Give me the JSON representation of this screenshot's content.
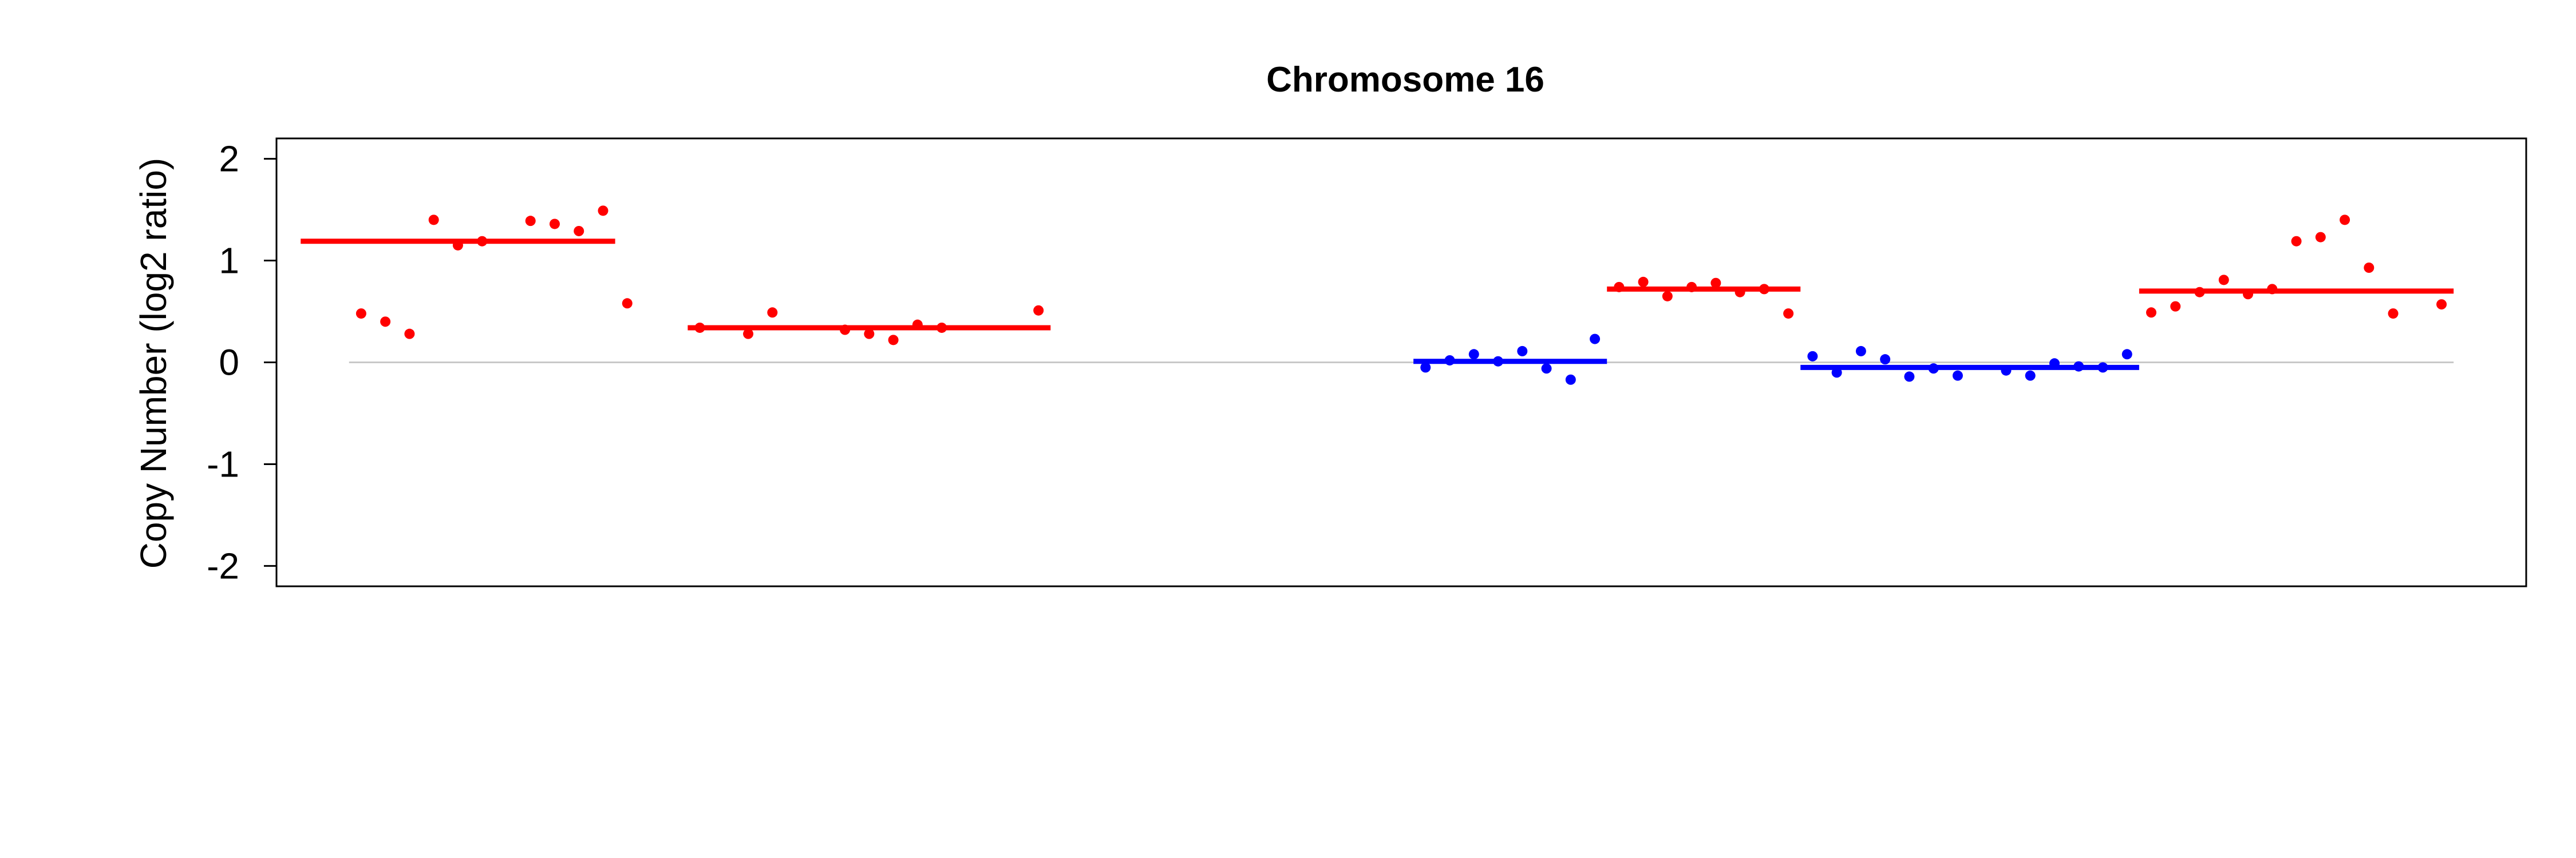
{
  "chart_data": {
    "type": "scatter",
    "title": "Chromosome 16",
    "xlabel": "",
    "ylabel": "Copy Number (log2 ratio)",
    "ylim": [
      -2.2,
      2.2
    ],
    "yticks": [
      2,
      1,
      0,
      -1,
      -2
    ],
    "xlim": [
      0,
      93
    ],
    "grid": false,
    "reference_line": 0,
    "colors": {
      "gain": "#ff0000",
      "loss": "#0000ff",
      "reference": "#c8c8c8",
      "axis": "#000000"
    },
    "segments": [
      {
        "x_start": 1,
        "x_end": 14,
        "value": 1.19,
        "color": "#ff0000"
      },
      {
        "x_start": 17,
        "x_end": 32,
        "value": 0.34,
        "color": "#ff0000"
      },
      {
        "x_start": 47,
        "x_end": 55,
        "value": 0.01,
        "color": "#0000ff"
      },
      {
        "x_start": 55,
        "x_end": 63,
        "value": 0.72,
        "color": "#ff0000"
      },
      {
        "x_start": 63,
        "x_end": 77,
        "value": -0.05,
        "color": "#0000ff"
      },
      {
        "x_start": 77,
        "x_end": 90,
        "value": 0.7,
        "color": "#ff0000"
      }
    ],
    "points": [
      {
        "x": 3.5,
        "y": 0.48,
        "color": "#ff0000"
      },
      {
        "x": 4.5,
        "y": 0.4,
        "color": "#ff0000"
      },
      {
        "x": 5.5,
        "y": 0.28,
        "color": "#ff0000"
      },
      {
        "x": 6.5,
        "y": 1.4,
        "color": "#ff0000"
      },
      {
        "x": 7.5,
        "y": 1.15,
        "color": "#ff0000"
      },
      {
        "x": 8.5,
        "y": 1.19,
        "color": "#ff0000"
      },
      {
        "x": 10.5,
        "y": 1.39,
        "color": "#ff0000"
      },
      {
        "x": 11.5,
        "y": 1.36,
        "color": "#ff0000"
      },
      {
        "x": 12.5,
        "y": 1.29,
        "color": "#ff0000"
      },
      {
        "x": 13.5,
        "y": 1.49,
        "color": "#ff0000"
      },
      {
        "x": 14.5,
        "y": 0.58,
        "color": "#ff0000"
      },
      {
        "x": 17.5,
        "y": 0.34,
        "color": "#ff0000"
      },
      {
        "x": 19.5,
        "y": 0.28,
        "color": "#ff0000"
      },
      {
        "x": 20.5,
        "y": 0.49,
        "color": "#ff0000"
      },
      {
        "x": 23.5,
        "y": 0.32,
        "color": "#ff0000"
      },
      {
        "x": 24.5,
        "y": 0.28,
        "color": "#ff0000"
      },
      {
        "x": 25.5,
        "y": 0.22,
        "color": "#ff0000"
      },
      {
        "x": 26.5,
        "y": 0.37,
        "color": "#ff0000"
      },
      {
        "x": 27.5,
        "y": 0.34,
        "color": "#ff0000"
      },
      {
        "x": 31.5,
        "y": 0.51,
        "color": "#ff0000"
      },
      {
        "x": 47.5,
        "y": -0.05,
        "color": "#0000ff"
      },
      {
        "x": 48.5,
        "y": 0.02,
        "color": "#0000ff"
      },
      {
        "x": 49.5,
        "y": 0.08,
        "color": "#0000ff"
      },
      {
        "x": 50.5,
        "y": 0.01,
        "color": "#0000ff"
      },
      {
        "x": 51.5,
        "y": 0.11,
        "color": "#0000ff"
      },
      {
        "x": 52.5,
        "y": -0.06,
        "color": "#0000ff"
      },
      {
        "x": 53.5,
        "y": -0.17,
        "color": "#0000ff"
      },
      {
        "x": 54.5,
        "y": 0.23,
        "color": "#0000ff"
      },
      {
        "x": 55.5,
        "y": 0.74,
        "color": "#ff0000"
      },
      {
        "x": 56.5,
        "y": 0.79,
        "color": "#ff0000"
      },
      {
        "x": 57.5,
        "y": 0.65,
        "color": "#ff0000"
      },
      {
        "x": 58.5,
        "y": 0.74,
        "color": "#ff0000"
      },
      {
        "x": 59.5,
        "y": 0.78,
        "color": "#ff0000"
      },
      {
        "x": 60.5,
        "y": 0.69,
        "color": "#ff0000"
      },
      {
        "x": 61.5,
        "y": 0.72,
        "color": "#ff0000"
      },
      {
        "x": 62.5,
        "y": 0.48,
        "color": "#ff0000"
      },
      {
        "x": 63.5,
        "y": 0.06,
        "color": "#0000ff"
      },
      {
        "x": 64.5,
        "y": -0.1,
        "color": "#0000ff"
      },
      {
        "x": 65.5,
        "y": 0.11,
        "color": "#0000ff"
      },
      {
        "x": 66.5,
        "y": 0.03,
        "color": "#0000ff"
      },
      {
        "x": 67.5,
        "y": -0.14,
        "color": "#0000ff"
      },
      {
        "x": 68.5,
        "y": -0.06,
        "color": "#0000ff"
      },
      {
        "x": 69.5,
        "y": -0.13,
        "color": "#0000ff"
      },
      {
        "x": 71.5,
        "y": -0.08,
        "color": "#0000ff"
      },
      {
        "x": 72.5,
        "y": -0.13,
        "color": "#0000ff"
      },
      {
        "x": 73.5,
        "y": -0.01,
        "color": "#0000ff"
      },
      {
        "x": 74.5,
        "y": -0.04,
        "color": "#0000ff"
      },
      {
        "x": 75.5,
        "y": -0.05,
        "color": "#0000ff"
      },
      {
        "x": 76.5,
        "y": 0.08,
        "color": "#0000ff"
      },
      {
        "x": 77.5,
        "y": 0.49,
        "color": "#ff0000"
      },
      {
        "x": 78.5,
        "y": 0.55,
        "color": "#ff0000"
      },
      {
        "x": 79.5,
        "y": 0.69,
        "color": "#ff0000"
      },
      {
        "x": 80.5,
        "y": 0.81,
        "color": "#ff0000"
      },
      {
        "x": 81.5,
        "y": 0.67,
        "color": "#ff0000"
      },
      {
        "x": 82.5,
        "y": 0.72,
        "color": "#ff0000"
      },
      {
        "x": 83.5,
        "y": 1.19,
        "color": "#ff0000"
      },
      {
        "x": 84.5,
        "y": 1.23,
        "color": "#ff0000"
      },
      {
        "x": 85.5,
        "y": 1.4,
        "color": "#ff0000"
      },
      {
        "x": 86.5,
        "y": 0.93,
        "color": "#ff0000"
      },
      {
        "x": 87.5,
        "y": 0.48,
        "color": "#ff0000"
      },
      {
        "x": 89.5,
        "y": 0.57,
        "color": "#ff0000"
      }
    ]
  }
}
